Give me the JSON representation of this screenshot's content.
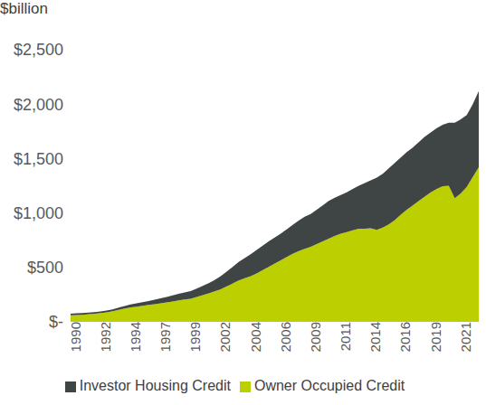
{
  "chart_data": {
    "type": "area",
    "subtitle": "$billion",
    "stacked": true,
    "legend": "bottom",
    "grid": false,
    "categories": [
      "1990",
      null,
      null,
      null,
      null,
      "1992",
      null,
      null,
      null,
      null,
      "1994",
      null,
      null,
      null,
      null,
      "1997",
      null,
      null,
      null,
      null,
      "1999",
      null,
      null,
      null,
      null,
      "2002",
      null,
      null,
      null,
      null,
      "2004",
      null,
      null,
      null,
      null,
      "2006",
      null,
      null,
      null,
      null,
      "2009",
      null,
      null,
      null,
      null,
      "2011",
      null,
      null,
      null,
      null,
      "2014",
      null,
      null,
      null,
      null,
      "2016",
      null,
      null,
      null,
      null,
      "2019",
      null,
      null,
      null,
      null,
      "2021",
      null,
      null,
      null
    ],
    "series": [
      {
        "name": "Owner Occupied Credit",
        "color": "#bccf00",
        "values": [
          60,
          62,
          65,
          70,
          75,
          80,
          88,
          97,
          110,
          122,
          132,
          140,
          148,
          156,
          163,
          170,
          178,
          187,
          197,
          205,
          212,
          228,
          245,
          262,
          280,
          300,
          325,
          352,
          380,
          400,
          420,
          445,
          475,
          505,
          535,
          565,
          595,
          625,
          650,
          670,
          690,
          715,
          740,
          765,
          790,
          810,
          825,
          840,
          855,
          855,
          860,
          845,
          865,
          895,
          935,
          985,
          1030,
          1070,
          1110,
          1150,
          1190,
          1220,
          1245,
          1250,
          1135,
          1180,
          1240,
          1330,
          1420
        ]
      },
      {
        "name": "Investor Housing Credit",
        "color": "#3f4444",
        "values": [
          15,
          16,
          17,
          16,
          15,
          16,
          16,
          18,
          20,
          23,
          28,
          30,
          32,
          36,
          40,
          45,
          50,
          55,
          61,
          65,
          70,
          77,
          85,
          93,
          105,
          120,
          135,
          153,
          170,
          185,
          200,
          215,
          225,
          235,
          240,
          245,
          255,
          265,
          280,
          295,
          300,
          315,
          330,
          345,
          350,
          355,
          365,
          380,
          395,
          420,
          440,
          480,
          495,
          515,
          525,
          525,
          530,
          530,
          540,
          550,
          550,
          560,
          565,
          580,
          695,
          680,
          660,
          670,
          700
        ]
      }
    ],
    "ylim": [
      0,
      2500
    ],
    "yticks": [
      {
        "value": 0,
        "label": "$-"
      },
      {
        "value": 500,
        "label": "$500"
      },
      {
        "value": 1000,
        "label": "$1,000"
      },
      {
        "value": 1500,
        "label": "$1,500"
      },
      {
        "value": 2000,
        "label": "$2,000"
      },
      {
        "value": 2500,
        "label": "$2,500"
      }
    ]
  }
}
